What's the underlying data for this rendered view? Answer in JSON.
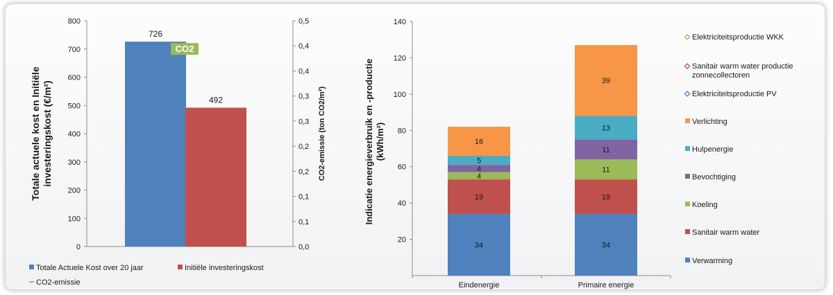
{
  "chart_data": [
    {
      "type": "bar",
      "categories": [
        "Totale Actuele Kost over 20 jaar",
        "Initiële investeringskost"
      ],
      "series": [
        {
          "name": "Totale Actuele Kost over 20 jaar",
          "values": [
            726,
            null
          ],
          "color": "#4f81bd"
        },
        {
          "name": "Initiële investeringskost",
          "values": [
            null,
            492
          ],
          "color": "#c0504d"
        },
        {
          "name": "CO2-emissie",
          "values": [
            null,
            null
          ],
          "color": "#9bbb59"
        }
      ],
      "data_labels": [
        "726",
        "492"
      ],
      "badge_label": "CO2",
      "ylabel": "Totale actuele kost  en Initiële investeringskost  (€/m²)",
      "ylim": [
        0,
        800
      ],
      "yticks": [
        "0",
        "100",
        "200",
        "300",
        "400",
        "500",
        "600",
        "700",
        "800"
      ],
      "y2label": "CO2-emissie (ton CO2/m²)",
      "y2ticks": [
        "0,0",
        "0,1",
        "0,1",
        "0,2",
        "0,2",
        "0,3",
        "0,3",
        "0,4",
        "0,4",
        "0,5"
      ],
      "legend": [
        "Totale Actuele Kost over 20 jaar",
        "Initiële investeringskost",
        "CO2-emissie"
      ],
      "legend_position": "bottom",
      "grid": false
    },
    {
      "type": "bar",
      "stacked": true,
      "categories": [
        "Eindenergie",
        "Primaire energie"
      ],
      "series": [
        {
          "name": "Verwarming",
          "values": [
            34,
            34
          ],
          "color": "#4f81bd"
        },
        {
          "name": "Sanitair warm water",
          "values": [
            19,
            19
          ],
          "color": "#c0504d"
        },
        {
          "name": "Koeling",
          "values": [
            4,
            11
          ],
          "color": "#9bbb59"
        },
        {
          "name": "Bevochtiging",
          "values": [
            4,
            11
          ],
          "color": "#8064a2"
        },
        {
          "name": "Hulpenergie",
          "values": [
            5,
            13
          ],
          "color": "#4bacc6"
        },
        {
          "name": "Verlichting",
          "values": [
            16,
            39
          ],
          "color": "#f79646"
        }
      ],
      "ylabel": "Indicatie energieverbruik en -productie (kWh/m²)",
      "ylim": [
        0,
        140
      ],
      "yticks": [
        "20",
        "40",
        "60",
        "80",
        "100",
        "120",
        "140"
      ],
      "legend": [
        {
          "label": "Elektriciteitsproductie WKK",
          "color": "#9bbb59",
          "marker": "diamond"
        },
        {
          "label": "Sanitair warm water productie zonnecollectoren",
          "color": "#c0504d",
          "marker": "diamond"
        },
        {
          "label": "Elektriciteitsproductie PV",
          "color": "#4f81bd",
          "marker": "diamond"
        },
        {
          "label": "Verlichting",
          "color": "#f79646",
          "marker": "square"
        },
        {
          "label": "Hulpenergie",
          "color": "#4bacc6",
          "marker": "square"
        },
        {
          "label": "Bevochtiging",
          "color": "#8064a2",
          "marker": "square"
        },
        {
          "label": "Koeling",
          "color": "#9bbb59",
          "marker": "square"
        },
        {
          "label": "Sanitair warm water",
          "color": "#c0504d",
          "marker": "square"
        },
        {
          "label": "Verwarming",
          "color": "#4f81bd",
          "marker": "square"
        }
      ],
      "legend_position": "right",
      "grid": false
    }
  ]
}
